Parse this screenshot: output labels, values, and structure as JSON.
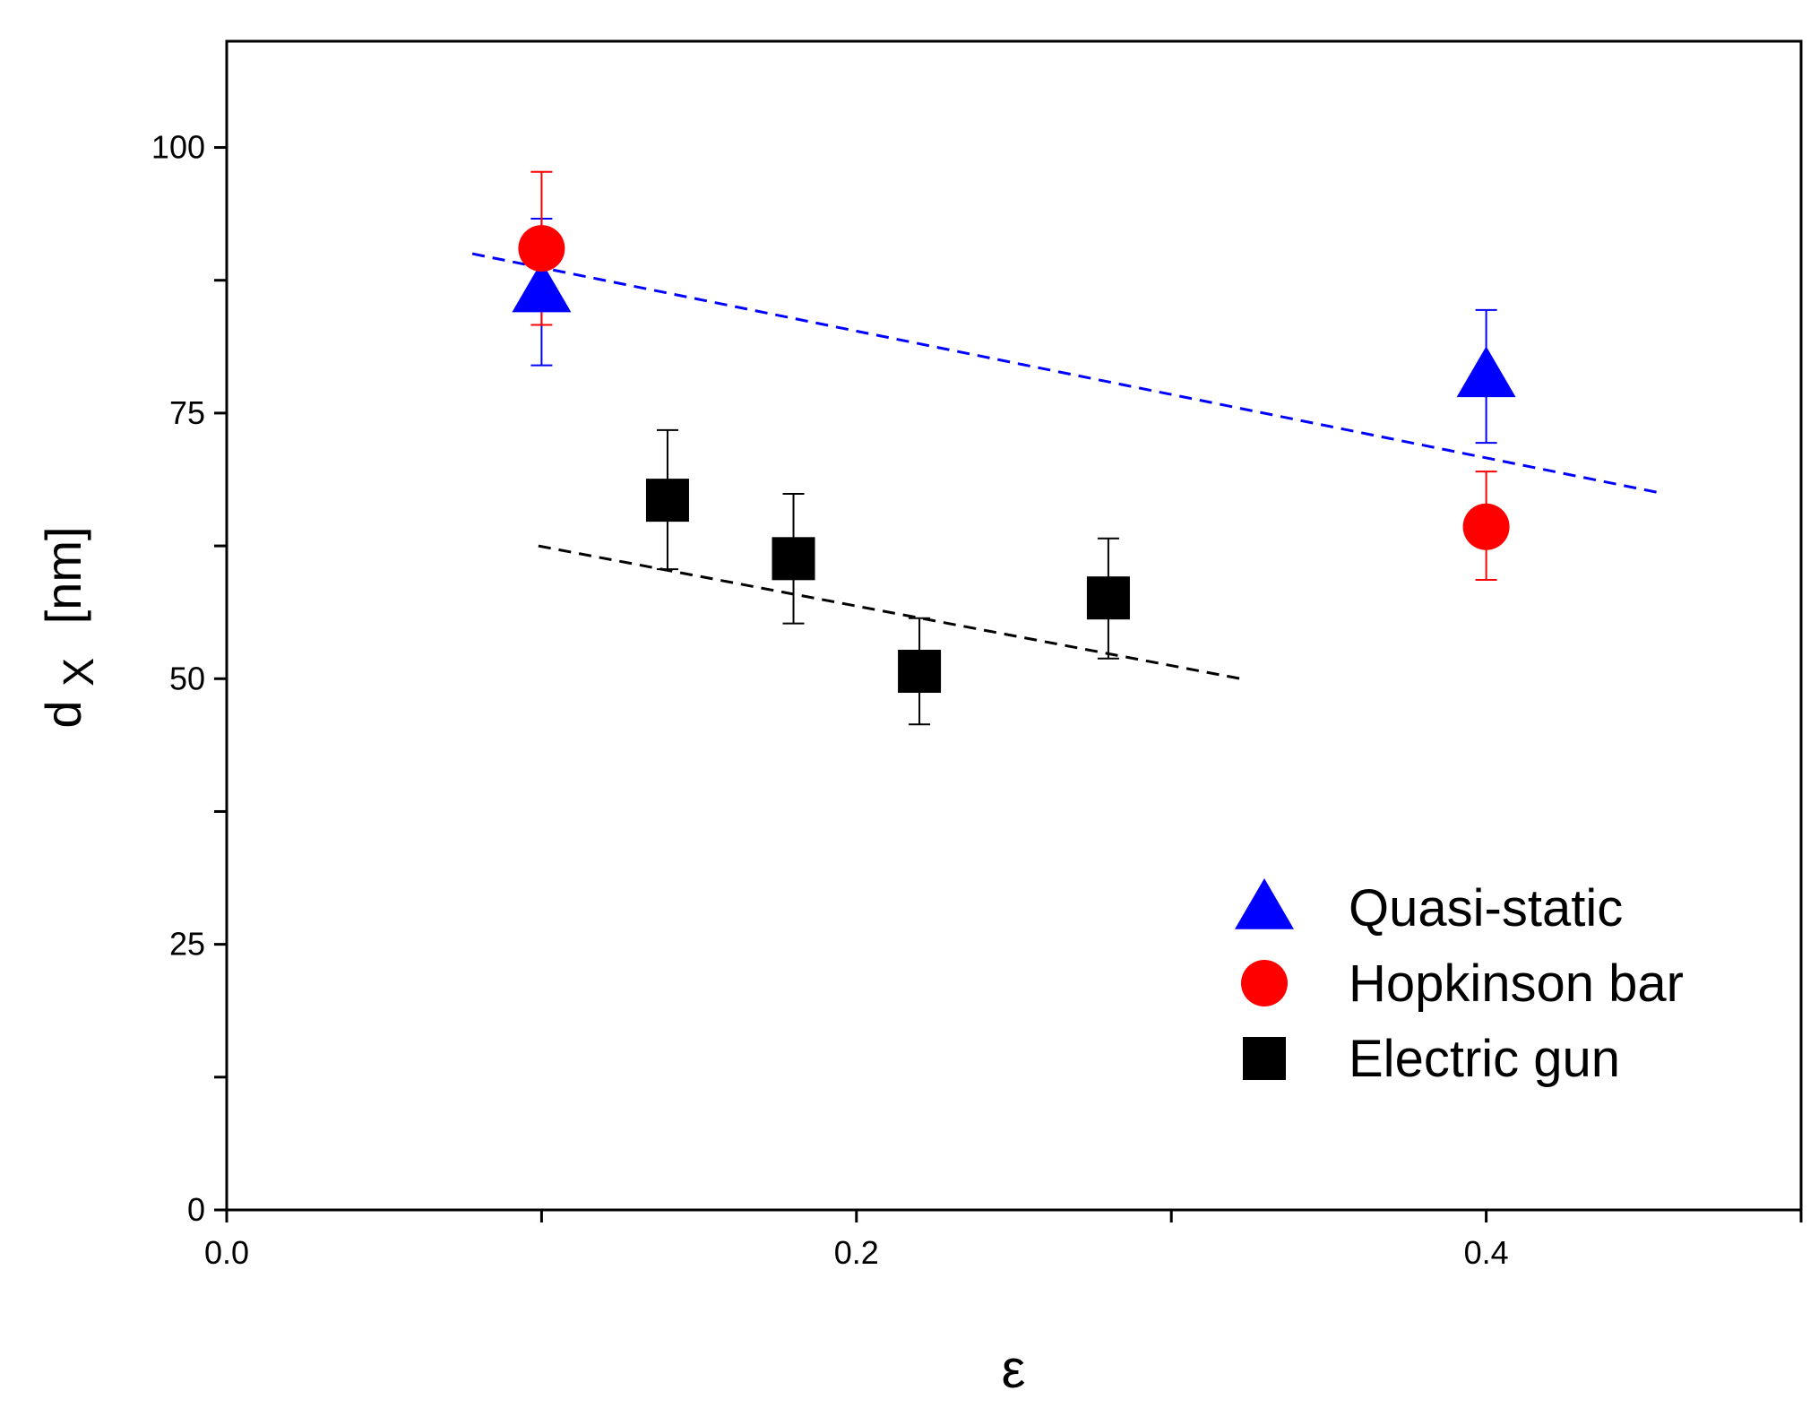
{
  "chart_data": {
    "type": "scatter",
    "xlabel": "ε",
    "ylabel": {
      "main": "d",
      "sub": "X",
      "unit": "[nm]"
    },
    "xlim": [
      0.0,
      0.5
    ],
    "ylim": [
      0,
      110
    ],
    "x_ticks": [
      {
        "value": 0.0,
        "label": "0.0"
      },
      {
        "value": 0.1,
        "label": ""
      },
      {
        "value": 0.2,
        "label": "0.2"
      },
      {
        "value": 0.3,
        "label": ""
      },
      {
        "value": 0.4,
        "label": "0.4"
      },
      {
        "value": 0.5,
        "label": ""
      }
    ],
    "y_ticks": [
      {
        "value": 0,
        "label": "0"
      },
      {
        "value": 12.5,
        "label": ""
      },
      {
        "value": 25,
        "label": "25"
      },
      {
        "value": 37.5,
        "label": ""
      },
      {
        "value": 50,
        "label": "50"
      },
      {
        "value": 62.5,
        "label": ""
      },
      {
        "value": 75,
        "label": "75"
      },
      {
        "value": 87.5,
        "label": ""
      },
      {
        "value": 100,
        "label": "100"
      }
    ],
    "series": [
      {
        "name": "Quasi-static",
        "marker": "triangle",
        "color": "#0000ff",
        "points": [
          {
            "x": 0.1,
            "y": 86.5,
            "err_lo": 7.0,
            "err_hi": 6.8
          },
          {
            "x": 0.4,
            "y": 78.5,
            "err_lo": 6.3,
            "err_hi": 6.2
          }
        ]
      },
      {
        "name": "Hopkinson bar",
        "marker": "circle",
        "color": "#ff0000",
        "points": [
          {
            "x": 0.1,
            "y": 90.5,
            "err_lo": 7.2,
            "err_hi": 7.2
          },
          {
            "x": 0.4,
            "y": 64.3,
            "err_lo": 5.0,
            "err_hi": 5.2
          }
        ]
      },
      {
        "name": "Electric gun",
        "marker": "square",
        "color": "#000000",
        "points": [
          {
            "x": 0.14,
            "y": 66.8,
            "err_lo": 6.5,
            "err_hi": 6.6
          },
          {
            "x": 0.18,
            "y": 61.3,
            "err_lo": 6.1,
            "err_hi": 6.1
          },
          {
            "x": 0.22,
            "y": 50.7,
            "err_lo": 5.0,
            "err_hi": 5.0
          },
          {
            "x": 0.28,
            "y": 57.6,
            "err_lo": 5.7,
            "err_hi": 5.6
          }
        ]
      }
    ],
    "trend_lines": [
      {
        "name": "quasi-static-fit",
        "color": "#0000ff",
        "x": [
          0.078,
          0.455
        ],
        "y": [
          90.0,
          67.5
        ]
      },
      {
        "name": "electric-gun-fit",
        "color": "#000000",
        "x": [
          0.099,
          0.322
        ],
        "y": [
          62.5,
          50.0
        ]
      }
    ],
    "legend": {
      "position": "bottom-right"
    }
  }
}
